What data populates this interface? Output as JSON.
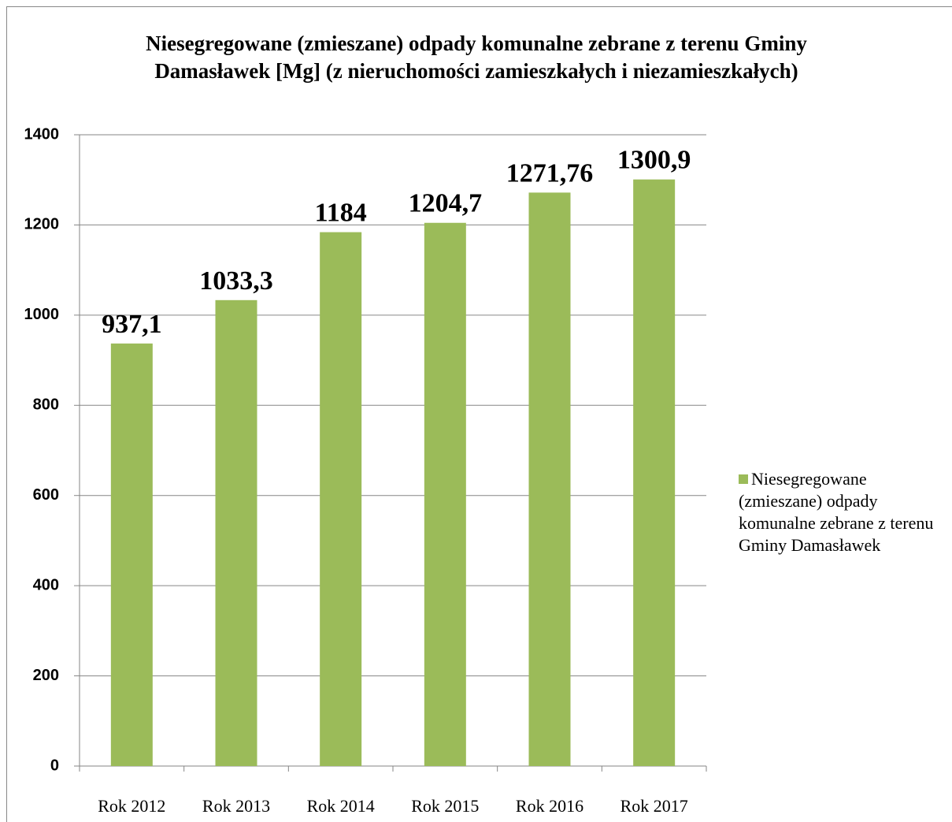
{
  "chart_data": {
    "type": "bar",
    "title": "Niesegregowane (zmieszane) odpady komunalne zebrane z terenu Gminy Damasławek [Mg] (z nieruchomości zamieszkałych i niezamieszkałych)",
    "categories": [
      "Rok 2012",
      "Rok 2013",
      "Rok 2014",
      "Rok 2015",
      "Rok 2016",
      "Rok 2017"
    ],
    "series": [
      {
        "name": "Niesegregowane (zmieszane)  odpady komunalne zebrane z terenu Gminy Damasławek",
        "color": "#9bbb59",
        "values": [
          937.1,
          1033.3,
          1184,
          1204.7,
          1271.76,
          1300.9
        ],
        "value_labels": [
          "937,1",
          "1033,3",
          "1184",
          "1204,7",
          "1271,76",
          "1300,9"
        ]
      }
    ],
    "ylim": [
      0,
      1400
    ],
    "yticks": [
      0,
      200,
      400,
      600,
      800,
      1000,
      1200,
      1400
    ],
    "grid": true,
    "legend": "right"
  }
}
